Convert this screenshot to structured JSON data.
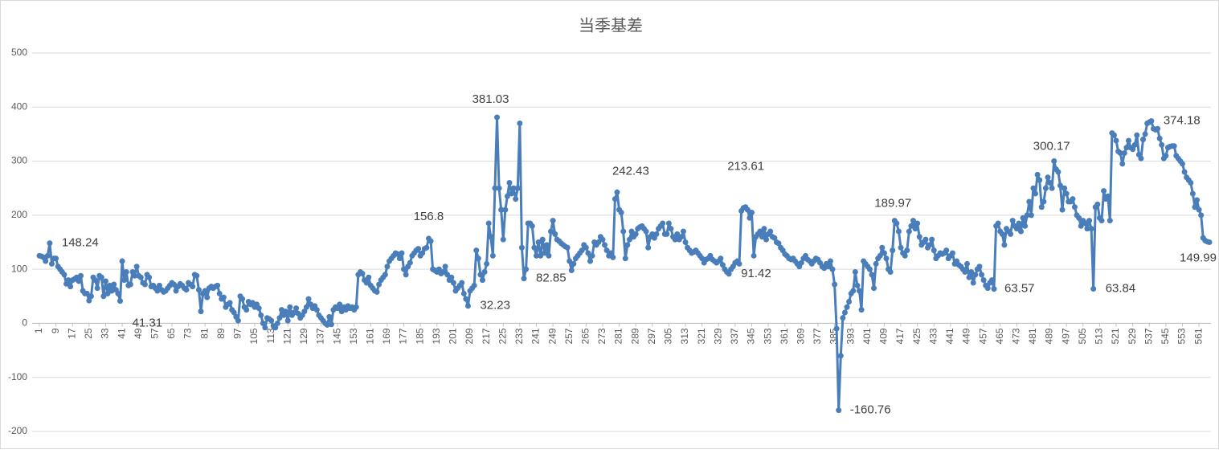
{
  "chart_data": {
    "type": "line",
    "title": "当季基差",
    "color": "#4a7ebb",
    "grid": true,
    "x": [
      1,
      2,
      3,
      4,
      5,
      6,
      7,
      8,
      9,
      10,
      11,
      12,
      13,
      14,
      15,
      16,
      17,
      18,
      19,
      20,
      21,
      22,
      23,
      24,
      25,
      26,
      27,
      28,
      29,
      30,
      31,
      32,
      33,
      34,
      35,
      36,
      37,
      38,
      39,
      40,
      41,
      42,
      43,
      44,
      45,
      46,
      47,
      48,
      49,
      50,
      51,
      52,
      53,
      54,
      55,
      56,
      57,
      58,
      59,
      60,
      61,
      62,
      63,
      64,
      65,
      66,
      67,
      68,
      69,
      70,
      71,
      72,
      73,
      74,
      75,
      76,
      77,
      78,
      79,
      80,
      81,
      82,
      83,
      84,
      85,
      86,
      87,
      88,
      89,
      90,
      91,
      92,
      93,
      94,
      95,
      96,
      97,
      98,
      99,
      100,
      101,
      102,
      103,
      104,
      105,
      106,
      107,
      108,
      109,
      110,
      111,
      112,
      113,
      114,
      115,
      116,
      117,
      118,
      119,
      120,
      121,
      122,
      123,
      124,
      125,
      126,
      127,
      128,
      129,
      130,
      131,
      132,
      133,
      134,
      135,
      136,
      137,
      138,
      139,
      140,
      141,
      142,
      143,
      144,
      145,
      146,
      147,
      148,
      149,
      150,
      151,
      152,
      153,
      154,
      155,
      156,
      157,
      158,
      159,
      160,
      161,
      162,
      163,
      164,
      165,
      166,
      167,
      168,
      169,
      170,
      171,
      172,
      173,
      174,
      175,
      176,
      177,
      178,
      179,
      180,
      181,
      182,
      183,
      184,
      185,
      186,
      187,
      188,
      189,
      190,
      191,
      192,
      193,
      194,
      195,
      196,
      197,
      198,
      199,
      200,
      201,
      202,
      203,
      204,
      205,
      206,
      207,
      208,
      209,
      210,
      211,
      212,
      213,
      214,
      215,
      216,
      217,
      218,
      219,
      220,
      221,
      222,
      223,
      224,
      225,
      226,
      227,
      228,
      229,
      230,
      231,
      232,
      233,
      234,
      235,
      236,
      237,
      238,
      239,
      240,
      241,
      242,
      243,
      244,
      245,
      246,
      247,
      248,
      249,
      250,
      251,
      252,
      253,
      254,
      255,
      256,
      257,
      258,
      259,
      260,
      261,
      262,
      263,
      264,
      265,
      266,
      267,
      268,
      269,
      270,
      271,
      272,
      273,
      274,
      275,
      276,
      277,
      278,
      279,
      280,
      281,
      282,
      283,
      284,
      285,
      286,
      287,
      288,
      289,
      290,
      291,
      292,
      293,
      294,
      295,
      296,
      297,
      298,
      299,
      300,
      301,
      302,
      303,
      304,
      305,
      306,
      307,
      308,
      309,
      310,
      311,
      312,
      313,
      314,
      315,
      316,
      317,
      318,
      319,
      320,
      321,
      322,
      323,
      324,
      325,
      326,
      327,
      328,
      329,
      330,
      331,
      332,
      333,
      334,
      335,
      336,
      337,
      338,
      339,
      340,
      341,
      342,
      343,
      344,
      345,
      346,
      347,
      348,
      349,
      350,
      351,
      352,
      353,
      354,
      355,
      356,
      357,
      358,
      359,
      360,
      361,
      362,
      363,
      364,
      365,
      366,
      367,
      368,
      369,
      370,
      371,
      372,
      373,
      374,
      375,
      376,
      377,
      378,
      379,
      380,
      381,
      382,
      383,
      384,
      385,
      386,
      387,
      388,
      389,
      390,
      391,
      392,
      393,
      394,
      395,
      396,
      397,
      398,
      399,
      400,
      401,
      402,
      403,
      404,
      405,
      406,
      407,
      408,
      409,
      410,
      411,
      412,
      413,
      414,
      415,
      416,
      417,
      418,
      419,
      420,
      421,
      422,
      423,
      424,
      425,
      426,
      427,
      428,
      429,
      430,
      431,
      432,
      433,
      434,
      435,
      436,
      437,
      438,
      439,
      440,
      441,
      442,
      443,
      444,
      445,
      446,
      447,
      448,
      449,
      450,
      451,
      452,
      453,
      454,
      455,
      456,
      457,
      458,
      459,
      460,
      461,
      462,
      463,
      464,
      465,
      466,
      467,
      468,
      469,
      470,
      471,
      472,
      473,
      474,
      475,
      476,
      477,
      478,
      479,
      480,
      481,
      482,
      483,
      484,
      485,
      486,
      487,
      488,
      489,
      490,
      491,
      492,
      493,
      494,
      495,
      496,
      497,
      498,
      499,
      500,
      501,
      502,
      503,
      504,
      505,
      506,
      507,
      508,
      509,
      510,
      511,
      512,
      513,
      514,
      515,
      516,
      517,
      518,
      519,
      520,
      521,
      522,
      523,
      524,
      525,
      526,
      527,
      528,
      529,
      530,
      531,
      532,
      533,
      534,
      535,
      536,
      537,
      538,
      539,
      540,
      541,
      542,
      543,
      544,
      545,
      546,
      547,
      548,
      549,
      550,
      551,
      552,
      553,
      554,
      555,
      556,
      557,
      558,
      559,
      560,
      561,
      562,
      563,
      564,
      565,
      566
    ],
    "values": [
      125,
      124,
      122,
      115,
      125,
      148.24,
      110,
      120,
      120,
      105,
      100,
      95,
      90,
      73,
      80,
      68,
      80,
      82,
      85,
      78,
      88,
      60,
      55,
      55,
      42,
      50,
      85,
      80,
      65,
      88,
      85,
      50,
      78,
      55,
      70,
      60,
      72,
      62,
      55,
      41.31,
      115,
      80,
      95,
      70,
      72,
      95,
      88,
      105,
      88,
      85,
      75,
      72,
      90,
      85,
      68,
      70,
      65,
      60,
      70,
      62,
      58,
      60,
      65,
      70,
      75,
      72,
      60,
      68,
      73,
      70,
      65,
      62,
      75,
      72,
      68,
      90,
      88,
      62,
      22,
      55,
      60,
      48,
      65,
      68,
      65,
      68,
      70,
      55,
      45,
      48,
      30,
      35,
      38,
      25,
      20,
      12,
      5,
      50,
      45,
      30,
      25,
      40,
      35,
      38,
      30,
      35,
      28,
      15,
      0,
      -8,
      10,
      8,
      5,
      -5,
      -8,
      0,
      10,
      25,
      15,
      22,
      5,
      30,
      15,
      20,
      28,
      18,
      10,
      15,
      22,
      30,
      45,
      35,
      28,
      32,
      25,
      15,
      10,
      5,
      0,
      -3,
      12,
      -2,
      25,
      30,
      28,
      35,
      22,
      30,
      25,
      32,
      28,
      30,
      25,
      30,
      90,
      95,
      92,
      80,
      75,
      85,
      70,
      65,
      60,
      58,
      72,
      80,
      85,
      90,
      105,
      115,
      120,
      125,
      130,
      128,
      120,
      130,
      100,
      90,
      105,
      112,
      125,
      130,
      135,
      138,
      125,
      130,
      138,
      140,
      156.8,
      152,
      100,
      98,
      95,
      100,
      92,
      95,
      105,
      90,
      80,
      85,
      75,
      60,
      65,
      70,
      75,
      55,
      45,
      32.23,
      60,
      65,
      70,
      135,
      120,
      90,
      80,
      95,
      110,
      185,
      160,
      125,
      250,
      381.03,
      250,
      210,
      155,
      210,
      235,
      260,
      240,
      250,
      230,
      250,
      370,
      140,
      82.85,
      100,
      185,
      185,
      180,
      140,
      125,
      150,
      125,
      155,
      130,
      145,
      125,
      170,
      190,
      165,
      155,
      152,
      148,
      145,
      142,
      140,
      115,
      98,
      110,
      120,
      125,
      130,
      135,
      145,
      140,
      130,
      115,
      125,
      150,
      145,
      150,
      160,
      155,
      145,
      135,
      125,
      130,
      122,
      230,
      242.43,
      210,
      205,
      170,
      120,
      145,
      155,
      170,
      160,
      165,
      175,
      178,
      180,
      175,
      170,
      140,
      160,
      165,
      158,
      165,
      175,
      180,
      185,
      165,
      165,
      185,
      175,
      160,
      155,
      165,
      155,
      160,
      170,
      150,
      140,
      135,
      130,
      132,
      135,
      130,
      125,
      120,
      112,
      118,
      120,
      125,
      118,
      115,
      112,
      115,
      120,
      108,
      100,
      95,
      91.42,
      100,
      105,
      112,
      115,
      110,
      208,
      213.61,
      215,
      210,
      195,
      205,
      125,
      160,
      165,
      170,
      160,
      175,
      155,
      165,
      170,
      160,
      158,
      150,
      148,
      140,
      135,
      128,
      125,
      120,
      118,
      120,
      115,
      110,
      105,
      112,
      120,
      125,
      118,
      115,
      110,
      115,
      120,
      118,
      112,
      105,
      102,
      110,
      105,
      115,
      100,
      72,
      -10,
      -160.76,
      -60,
      10,
      20,
      30,
      40,
      55,
      60,
      95,
      70,
      60,
      25,
      115,
      110,
      105,
      100,
      90,
      65,
      110,
      120,
      125,
      140,
      130,
      120,
      100,
      95,
      135,
      189.97,
      185,
      170,
      140,
      130,
      125,
      135,
      170,
      180,
      190,
      175,
      185,
      160,
      145,
      150,
      155,
      140,
      145,
      155,
      135,
      120,
      125,
      130,
      128,
      130,
      135,
      120,
      125,
      130,
      110,
      115,
      108,
      105,
      100,
      95,
      110,
      85,
      95,
      75,
      90,
      100,
      105,
      90,
      80,
      70,
      65,
      75,
      80,
      63.57,
      180,
      185,
      170,
      165,
      145,
      175,
      170,
      165,
      190,
      180,
      175,
      185,
      170,
      195,
      180,
      200,
      225,
      200,
      250,
      240,
      275,
      265,
      215,
      225,
      250,
      270,
      260,
      250,
      300.17,
      285,
      280,
      255,
      210,
      250,
      240,
      225,
      225,
      230,
      215,
      200,
      195,
      180,
      190,
      185,
      175,
      190,
      175,
      63.84,
      215,
      220,
      195,
      190,
      245,
      230,
      235,
      190,
      352,
      348,
      338,
      318,
      315,
      295,
      315,
      325,
      338,
      325,
      322,
      330,
      348,
      312,
      305,
      340,
      350,
      370,
      372,
      374.18,
      360,
      358,
      360,
      342,
      330,
      305,
      310,
      325,
      327,
      328,
      328,
      310,
      305,
      300,
      295,
      280,
      270,
      265,
      260,
      240,
      215,
      228,
      210,
      200,
      158,
      153,
      151,
      149.99
    ],
    "value_labels": {
      "5": "148.24",
      "39": "41.31",
      "188": "156.8",
      "207": "32.23",
      "221": "381.03",
      "234": "82.85",
      "279": "242.43",
      "333": "91.42",
      "340": "213.61",
      "386": "-160.76",
      "413": "189.97",
      "461": "63.57",
      "490": "300.17",
      "509": "63.84",
      "537": "374.18",
      "565": "149.99"
    },
    "xlim": [
      1,
      566
    ],
    "xticks": [
      1,
      9,
      17,
      25,
      33,
      41,
      49,
      57,
      65,
      73,
      81,
      89,
      97,
      105,
      113,
      121,
      129,
      137,
      145,
      153,
      161,
      169,
      177,
      185,
      193,
      201,
      209,
      217,
      225,
      233,
      241,
      249,
      257,
      265,
      273,
      281,
      289,
      297,
      305,
      313,
      321,
      329,
      337,
      345,
      353,
      361,
      369,
      377,
      385,
      393,
      401,
      409,
      417,
      425,
      433,
      441,
      449,
      457,
      465,
      473,
      481,
      489,
      497,
      505,
      513,
      521,
      529,
      537,
      545,
      553,
      561
    ],
    "ylim": [
      -200,
      500
    ],
    "yticks": [
      -200,
      -100,
      0,
      100,
      200,
      300,
      400,
      500
    ]
  }
}
